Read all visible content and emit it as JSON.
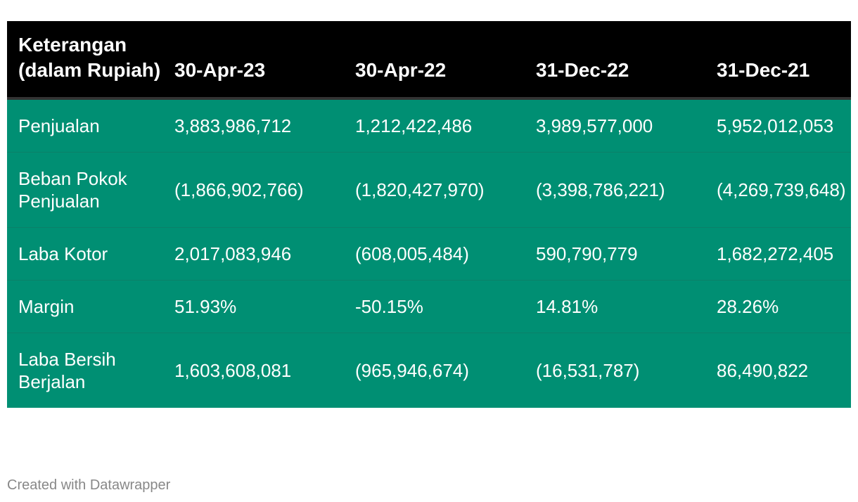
{
  "chart_data": {
    "type": "table",
    "columns": [
      "Keterangan (dalam Rupiah)",
      "30-Apr-23",
      "30-Apr-22",
      "31-Dec-22",
      "31-Dec-21"
    ],
    "rows": [
      [
        "Penjualan",
        "3,883,986,712",
        "1,212,422,486",
        "3,989,577,000",
        "5,952,012,053"
      ],
      [
        "Beban Pokok Penjualan",
        "(1,866,902,766)",
        "(1,820,427,970)",
        "(3,398,786,221)",
        "(4,269,739,648)"
      ],
      [
        "Laba Kotor",
        "2,017,083,946",
        "(608,005,484)",
        "590,790,779",
        "1,682,272,405"
      ],
      [
        "Margin",
        "51.93%",
        "-50.15%",
        "14.81%",
        "28.26%"
      ],
      [
        "Laba Bersih Berjalan",
        "1,603,608,081",
        "(965,946,674)",
        "(16,531,787)",
        "86,490,822"
      ]
    ]
  },
  "colors": {
    "header_background": "#000000",
    "body_background": "#008f73",
    "text": "#ffffff",
    "credit_text": "#888888"
  },
  "footer": {
    "credit": "Created with Datawrapper"
  }
}
